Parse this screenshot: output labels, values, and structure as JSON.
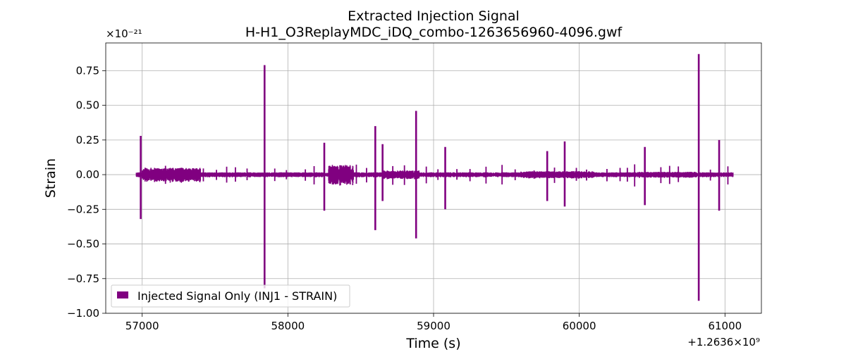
{
  "chart_data": {
    "type": "line",
    "title_line1": "Extracted Injection Signal",
    "title_line2": "H-H1_O3ReplayMDC_iDQ_combo-1263656960-4096.gwf",
    "xlabel": "Time (s)",
    "ylabel": "Strain",
    "y_multiplier_label": "×10⁻²¹",
    "x_offset_label": "+1.2636×10⁹",
    "xlim": [
      56750,
      61250
    ],
    "ylim": [
      -1.0,
      0.95
    ],
    "x_ticks": [
      57000,
      58000,
      59000,
      60000,
      61000
    ],
    "x_tick_labels": [
      "57000",
      "58000",
      "59000",
      "60000",
      "61000"
    ],
    "y_ticks": [
      -1.0,
      -0.75,
      -0.5,
      -0.25,
      0.0,
      0.25,
      0.5,
      0.75
    ],
    "y_tick_labels": [
      "−1.00",
      "−0.75",
      "−0.50",
      "−0.25",
      "0.00",
      "0.25",
      "0.50",
      "0.75"
    ],
    "grid": true,
    "legend_position": "lower-left",
    "series": [
      {
        "name": "Injected Signal Only (INJ1 - STRAIN)",
        "color": "#800080",
        "x_start": 56960,
        "x_end": 61056,
        "spikes": [
          {
            "x": 56990,
            "max": 0.28,
            "min": -0.32
          },
          {
            "x": 57840,
            "max": 0.79,
            "min": -0.82
          },
          {
            "x": 58250,
            "max": 0.23,
            "min": -0.26
          },
          {
            "x": 58600,
            "max": 0.35,
            "min": -0.4
          },
          {
            "x": 58650,
            "max": 0.22,
            "min": -0.19
          },
          {
            "x": 58880,
            "max": 0.46,
            "min": -0.46
          },
          {
            "x": 59080,
            "max": 0.2,
            "min": -0.25
          },
          {
            "x": 59780,
            "max": 0.17,
            "min": -0.19
          },
          {
            "x": 59900,
            "max": 0.24,
            "min": -0.23
          },
          {
            "x": 60450,
            "max": 0.2,
            "min": -0.22
          },
          {
            "x": 60820,
            "max": 0.87,
            "min": -0.91
          },
          {
            "x": 60960,
            "max": 0.25,
            "min": -0.26
          }
        ],
        "bursts": [
          {
            "x_from": 57000,
            "x_to": 57400,
            "amp": 0.05
          },
          {
            "x_from": 58280,
            "x_to": 58450,
            "amp": 0.07
          },
          {
            "x_from": 58650,
            "x_to": 58900,
            "amp": 0.03
          },
          {
            "x_from": 59600,
            "x_to": 60100,
            "amp": 0.025
          },
          {
            "x_from": 60400,
            "x_to": 60800,
            "amp": 0.02
          }
        ],
        "small_spikes": [
          57160,
          57300,
          57420,
          57510,
          57580,
          57640,
          57720,
          57910,
          57990,
          58120,
          58180,
          58320,
          58390,
          58470,
          58540,
          58720,
          58800,
          58950,
          59030,
          59160,
          59250,
          59360,
          59470,
          59560,
          59690,
          59830,
          59980,
          60050,
          60190,
          60280,
          60330,
          60380,
          60560,
          60620,
          60680,
          60900,
          61020
        ],
        "baseline_amp": 0.012
      }
    ]
  }
}
